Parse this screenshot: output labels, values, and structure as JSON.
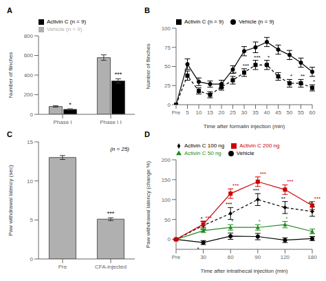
{
  "chart_data": [
    {
      "type": "bar",
      "title": "A",
      "categories": [
        "Phase I",
        "Phase I I"
      ],
      "series": [
        {
          "name": "Vehicle (n = 9)",
          "color": "#b0b0b0",
          "values": [
            80,
            578
          ],
          "errors": [
            7,
            28
          ]
        },
        {
          "name": "Activin C (n = 9)",
          "color": "#000000",
          "values": [
            50,
            340
          ],
          "errors": [
            6,
            22
          ],
          "annotations": [
            "*",
            "***"
          ]
        }
      ],
      "ylabel": "Number of flinches",
      "ylim": [
        0,
        800
      ],
      "yticks": [
        0,
        200,
        400,
        600,
        800
      ],
      "grid": false,
      "legend": "upper left"
    },
    {
      "type": "line",
      "title": "B",
      "categories": [
        "Pre",
        "5",
        "10",
        "15",
        "20",
        "25",
        "30",
        "35",
        "40",
        "45",
        "50",
        "55",
        "60"
      ],
      "series": [
        {
          "name": "Vehicle (n = 9)",
          "color": "#000000",
          "marker": "circle",
          "line_style": "solid",
          "values": [
            0,
            53,
            30,
            27,
            27,
            46,
            70,
            75,
            82,
            72,
            65,
            55,
            43
          ],
          "errors": [
            0,
            7,
            5,
            4,
            5,
            5,
            6,
            7,
            6,
            6,
            6,
            6,
            6
          ]
        },
        {
          "name": "Activin C (n = 9)",
          "color": "#000000",
          "marker": "square",
          "line_style": "dashed",
          "values": [
            0,
            38,
            18,
            13,
            23,
            32,
            42,
            52,
            52,
            37,
            28,
            28,
            22
          ],
          "errors": [
            0,
            6,
            4,
            4,
            4,
            5,
            5,
            6,
            6,
            5,
            5,
            5,
            4
          ],
          "annotations": [
            null,
            null,
            null,
            null,
            null,
            "**",
            "***",
            "***",
            "*",
            null,
            "*",
            "**",
            "*"
          ]
        }
      ],
      "xlabel": "Time after formalin injection (min)",
      "ylabel": "Number of flinches",
      "ylim": [
        0,
        100
      ],
      "yticks": [
        0,
        25,
        50,
        75,
        100
      ],
      "grid": false,
      "legend": "upper left"
    },
    {
      "type": "bar",
      "title": "C",
      "categories": [
        "Pre",
        "CFA-injected"
      ],
      "series": [
        {
          "color": "#b0b0b0",
          "values": [
            13.0,
            5.1
          ],
          "errors": [
            0.25,
            0.18
          ],
          "annotations": [
            null,
            "***"
          ]
        }
      ],
      "annotations": [
        "(n = 25)"
      ],
      "ylabel": "Paw withdrawal latency (sec)",
      "ylim": [
        0,
        15
      ],
      "yticks": [
        0,
        5,
        10,
        15
      ],
      "grid": false
    },
    {
      "type": "line",
      "title": "D",
      "categories": [
        "Pre",
        "30",
        "60",
        "90",
        "120",
        "180"
      ],
      "series": [
        {
          "name": "Vehicle",
          "color": "#000000",
          "marker": "circle",
          "line_style": "solid",
          "values": [
            0,
            -8,
            8,
            7,
            -2,
            2
          ],
          "errors": [
            1,
            5,
            8,
            8,
            6,
            5
          ],
          "annotations": [
            null,
            "*",
            null,
            null,
            null,
            null
          ]
        },
        {
          "name": "Activin C 100 ng",
          "color": "#000000",
          "marker": "diamond",
          "line_style": "dashed",
          "values": [
            0,
            35,
            65,
            100,
            80,
            70
          ],
          "errors": [
            2,
            10,
            15,
            15,
            15,
            12
          ],
          "annotations": [
            null,
            "*",
            "***",
            "***",
            "**",
            "**"
          ]
        },
        {
          "name": "Activin C 50 ng",
          "color": "#228B22",
          "marker": "triangle",
          "line_style": "solid",
          "values": [
            0,
            22,
            30,
            30,
            37,
            20
          ],
          "errors": [
            1,
            5,
            7,
            7,
            8,
            6
          ],
          "annotations": [
            null,
            "*",
            "*",
            "*",
            "*",
            null
          ]
        },
        {
          "name": "Activin C 200 ng",
          "color": "#CC0000",
          "marker": "square",
          "line_style": "solid",
          "values": [
            0,
            38,
            115,
            145,
            125,
            85
          ],
          "errors": [
            2,
            8,
            12,
            12,
            12,
            10
          ],
          "annotations": [
            null,
            "***",
            "***",
            "***",
            "***",
            "***"
          ]
        }
      ],
      "xlabel": "Time after intrathecal injection (min)",
      "ylabel": "Paw withdrawal latency (change %)",
      "ylim": [
        -25,
        200
      ],
      "yticks": [
        0,
        50,
        100,
        150,
        200
      ],
      "grid": false,
      "legend": "upper left"
    }
  ]
}
